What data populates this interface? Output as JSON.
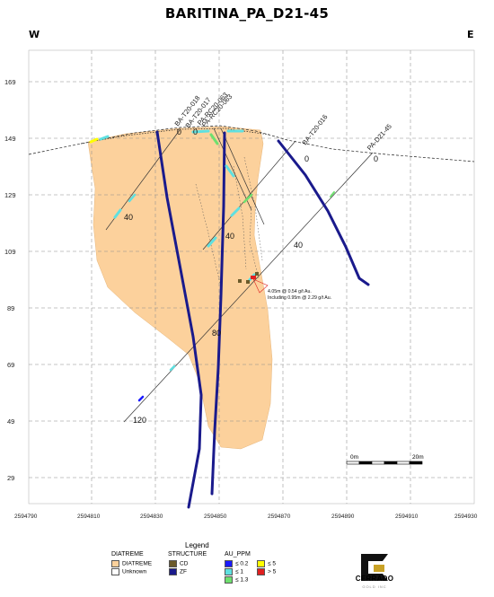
{
  "title": "BARITINA_PA_D21-45",
  "direction": {
    "west": "W",
    "east": "E"
  },
  "axes": {
    "y_ticks": [
      "169",
      "149",
      "129",
      "109",
      "89",
      "69",
      "49",
      "29"
    ],
    "x_ticks": [
      "2594790",
      "2594810",
      "2594830",
      "2594850",
      "2594870",
      "2594890",
      "2594910",
      "2594930"
    ]
  },
  "holes": [
    {
      "name": "BA-T20-018"
    },
    {
      "name": "BA-T20-017"
    },
    {
      "name": "PA-RC20-063"
    },
    {
      "name": "PA-RC20-063"
    },
    {
      "name": "BA-T20-016"
    },
    {
      "name": "PA-D21-45"
    }
  ],
  "depth_marks": {
    "collar": "0",
    "mark_40": "40",
    "mark_80": "80",
    "mark_120": "120"
  },
  "intercept_note": {
    "line1": "4.05m @ 0.54 g/t Au.",
    "line2": "Including 0.95m @ 2.29 g/t Au."
  },
  "scale_bar": {
    "start": "0m",
    "end": "20m"
  },
  "legend": {
    "title": "Legend",
    "diatreme": {
      "header": "DIATREME",
      "items": [
        "DIATREME",
        "Unknown"
      ]
    },
    "structure": {
      "header": "STRUCTURE",
      "items": [
        "CD",
        "ZF"
      ]
    },
    "au": {
      "header": "AU_PPM",
      "items": [
        "≤ 0.2",
        "≤ 1",
        "≤ 1.3",
        "≤ 5",
        "> 5"
      ]
    }
  },
  "colors": {
    "diatreme": "#fcd19c",
    "zf": "#1a1a8c",
    "cd": "#6b5a2a",
    "au_low": "#1a1aff",
    "au_mid": "#5fe0e0",
    "au_13": "#6fe06f",
    "au_5": "#ffff00",
    "au_high": "#e02020"
  },
  "logo": {
    "name": "CERRADO",
    "sub": "GOLD INC"
  }
}
